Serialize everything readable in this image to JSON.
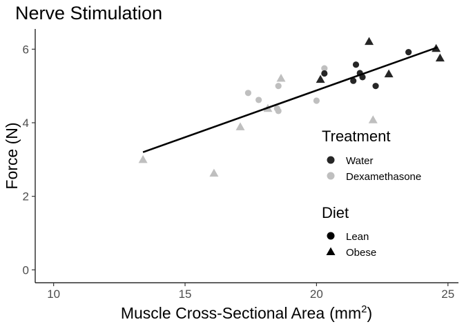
{
  "chart_data": {
    "type": "scatter",
    "title": "Nerve Stimulation",
    "xlabel": "Muscle Cross-Sectional Area",
    "xlabel_unit_base": "(mm",
    "xlabel_unit_exp": "2",
    "xlabel_unit_close": ")",
    "ylabel": "Force (N)",
    "xlim": [
      9.3,
      25.4
    ],
    "ylim": [
      -0.35,
      6.55
    ],
    "x_ticks": [
      10,
      15,
      20,
      25
    ],
    "y_ticks": [
      0,
      2,
      4,
      6
    ],
    "grid": false,
    "legend_placement": "right-inside",
    "legends": [
      {
        "title": "Treatment",
        "entries": [
          {
            "label": "Water",
            "color": "#262626",
            "shape": "circle"
          },
          {
            "label": "Dexamethasone",
            "color": "#bfbfbf",
            "shape": "circle"
          }
        ]
      },
      {
        "title": "Diet",
        "entries": [
          {
            "label": "Lean",
            "color": "#000000",
            "shape": "circle"
          },
          {
            "label": "Obese",
            "color": "#000000",
            "shape": "triangle"
          }
        ]
      }
    ],
    "colors": {
      "Water": "#262626",
      "Dexamethasone": "#bfbfbf"
    },
    "points": [
      {
        "x": 13.4,
        "y": 3.0,
        "treatment": "Dexamethasone",
        "diet": "Obese"
      },
      {
        "x": 16.1,
        "y": 2.63,
        "treatment": "Dexamethasone",
        "diet": "Obese"
      },
      {
        "x": 17.1,
        "y": 3.89,
        "treatment": "Dexamethasone",
        "diet": "Obese"
      },
      {
        "x": 17.4,
        "y": 4.81,
        "treatment": "Dexamethasone",
        "diet": "Lean"
      },
      {
        "x": 17.8,
        "y": 4.62,
        "treatment": "Dexamethasone",
        "diet": "Lean"
      },
      {
        "x": 18.15,
        "y": 4.39,
        "treatment": "Dexamethasone",
        "diet": "Obese"
      },
      {
        "x": 18.5,
        "y": 4.39,
        "treatment": "Dexamethasone",
        "diet": "Lean"
      },
      {
        "x": 18.55,
        "y": 4.32,
        "treatment": "Dexamethasone",
        "diet": "Lean"
      },
      {
        "x": 18.55,
        "y": 5.0,
        "treatment": "Dexamethasone",
        "diet": "Lean"
      },
      {
        "x": 18.65,
        "y": 5.21,
        "treatment": "Dexamethasone",
        "diet": "Obese"
      },
      {
        "x": 20.0,
        "y": 4.6,
        "treatment": "Dexamethasone",
        "diet": "Lean"
      },
      {
        "x": 20.3,
        "y": 5.48,
        "treatment": "Dexamethasone",
        "diet": "Lean"
      },
      {
        "x": 22.15,
        "y": 4.08,
        "treatment": "Dexamethasone",
        "diet": "Obese"
      },
      {
        "x": 20.15,
        "y": 5.18,
        "treatment": "Water",
        "diet": "Obese"
      },
      {
        "x": 20.3,
        "y": 5.34,
        "treatment": "Water",
        "diet": "Lean"
      },
      {
        "x": 21.4,
        "y": 5.14,
        "treatment": "Water",
        "diet": "Lean"
      },
      {
        "x": 21.5,
        "y": 5.58,
        "treatment": "Water",
        "diet": "Lean"
      },
      {
        "x": 21.65,
        "y": 5.35,
        "treatment": "Water",
        "diet": "Lean"
      },
      {
        "x": 21.75,
        "y": 5.24,
        "treatment": "Water",
        "diet": "Lean"
      },
      {
        "x": 22.0,
        "y": 6.21,
        "treatment": "Water",
        "diet": "Obese"
      },
      {
        "x": 22.25,
        "y": 5.0,
        "treatment": "Water",
        "diet": "Lean"
      },
      {
        "x": 22.75,
        "y": 5.33,
        "treatment": "Water",
        "diet": "Obese"
      },
      {
        "x": 23.5,
        "y": 5.92,
        "treatment": "Water",
        "diet": "Lean"
      },
      {
        "x": 24.55,
        "y": 6.02,
        "treatment": "Water",
        "diet": "Obese"
      },
      {
        "x": 24.7,
        "y": 5.76,
        "treatment": "Water",
        "diet": "Obese"
      }
    ],
    "fit_line": {
      "x": [
        13.4,
        24.6
      ],
      "y": [
        3.2,
        6.05
      ],
      "color": "#000000"
    }
  }
}
